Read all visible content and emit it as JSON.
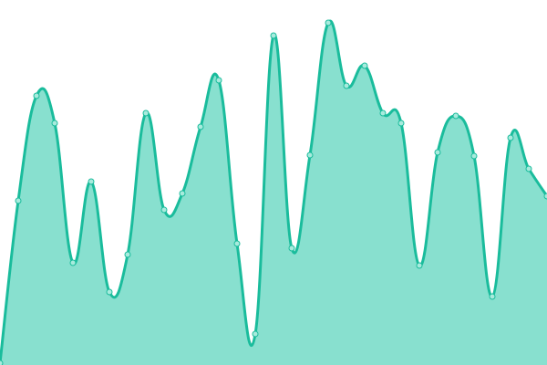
{
  "chart_data": {
    "type": "area",
    "title": "",
    "xlabel": "",
    "ylabel": "",
    "x": [
      0,
      1,
      2,
      3,
      4,
      5,
      6,
      7,
      8,
      9,
      10,
      11,
      12,
      13,
      14,
      15,
      16,
      17,
      18,
      19,
      20,
      21,
      22,
      23,
      24,
      25,
      26,
      27,
      28,
      29,
      30
    ],
    "values": [
      2,
      180,
      295,
      265,
      112,
      201,
      80,
      121,
      276,
      170,
      188,
      261,
      312,
      133,
      34,
      361,
      128,
      230,
      375,
      306,
      328,
      276,
      265,
      109,
      233,
      273,
      229,
      75,
      249,
      215,
      185
    ],
    "xlim": [
      0,
      30
    ],
    "ylim": [
      0,
      400
    ],
    "grid": false,
    "axes_visible": false,
    "legend": "none",
    "curve": "smooth",
    "markers": true,
    "colors": {
      "line": "#1abc9c",
      "fill": "#88e0cf",
      "marker_fill": "#a8ebdd",
      "marker_stroke": "#1abc9c"
    }
  }
}
